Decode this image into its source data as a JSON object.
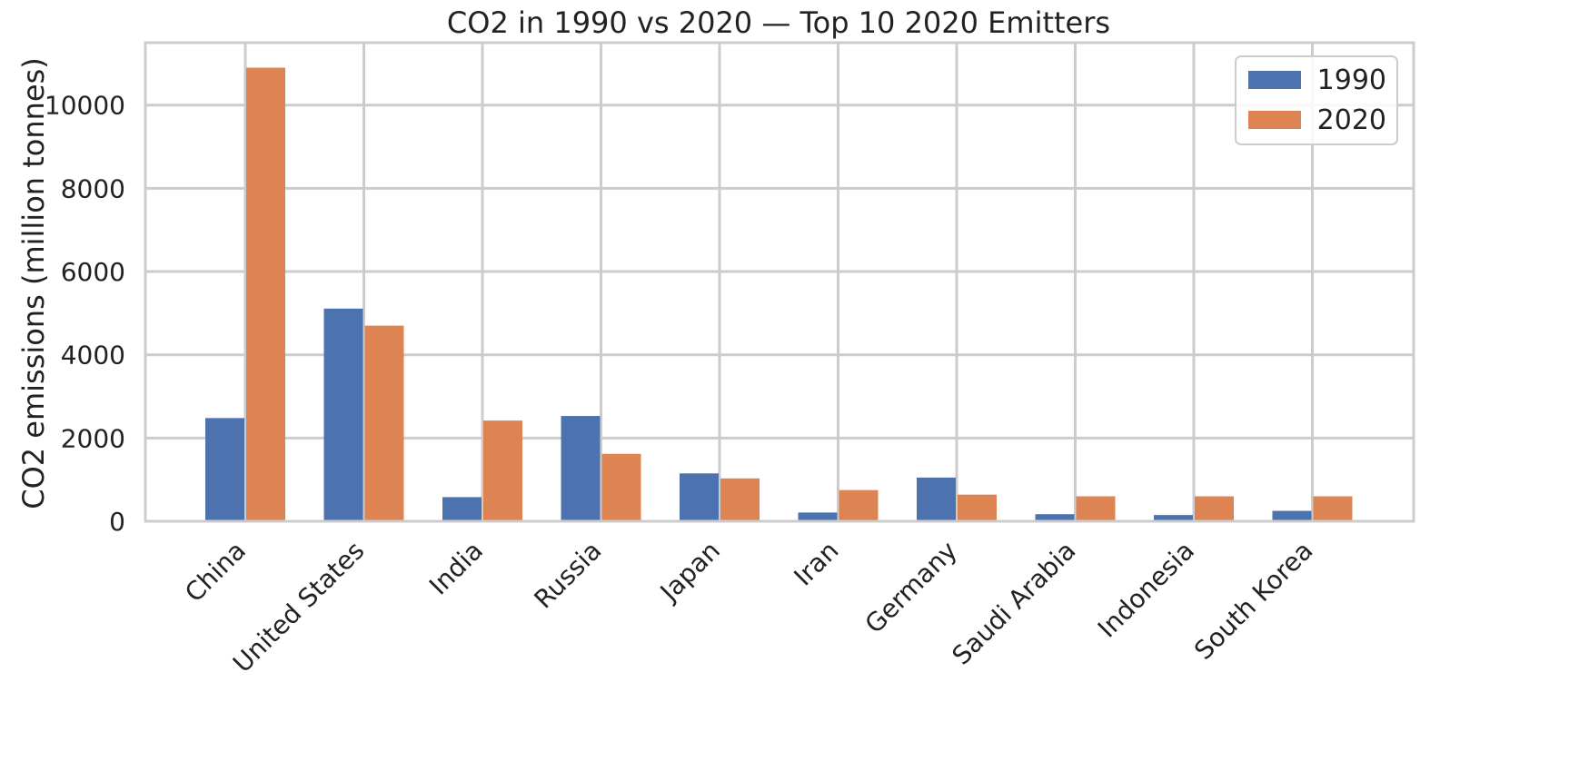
{
  "chart_data": {
    "type": "bar",
    "title": "CO2 in 1990 vs 2020 — Top 10 2020 Emitters",
    "xlabel": "",
    "ylabel": "CO2 emissions (million tonnes)",
    "categories": [
      "China",
      "United States",
      "India",
      "Russia",
      "Japan",
      "Iran",
      "Germany",
      "Saudi Arabia",
      "Indonesia",
      "South Korea"
    ],
    "series": [
      {
        "name": "1990",
        "color": "#4C72B0",
        "values": [
          2480,
          5110,
          580,
          2530,
          1150,
          210,
          1050,
          170,
          150,
          250
        ]
      },
      {
        "name": "2020",
        "color": "#DD8452",
        "values": [
          10900,
          4700,
          2420,
          1620,
          1030,
          750,
          640,
          600,
          600,
          600
        ]
      }
    ],
    "ylim": [
      0,
      11500
    ],
    "yticks": [
      0,
      2000,
      4000,
      6000,
      8000,
      10000
    ],
    "grid": true,
    "legend_position": "top-right"
  }
}
